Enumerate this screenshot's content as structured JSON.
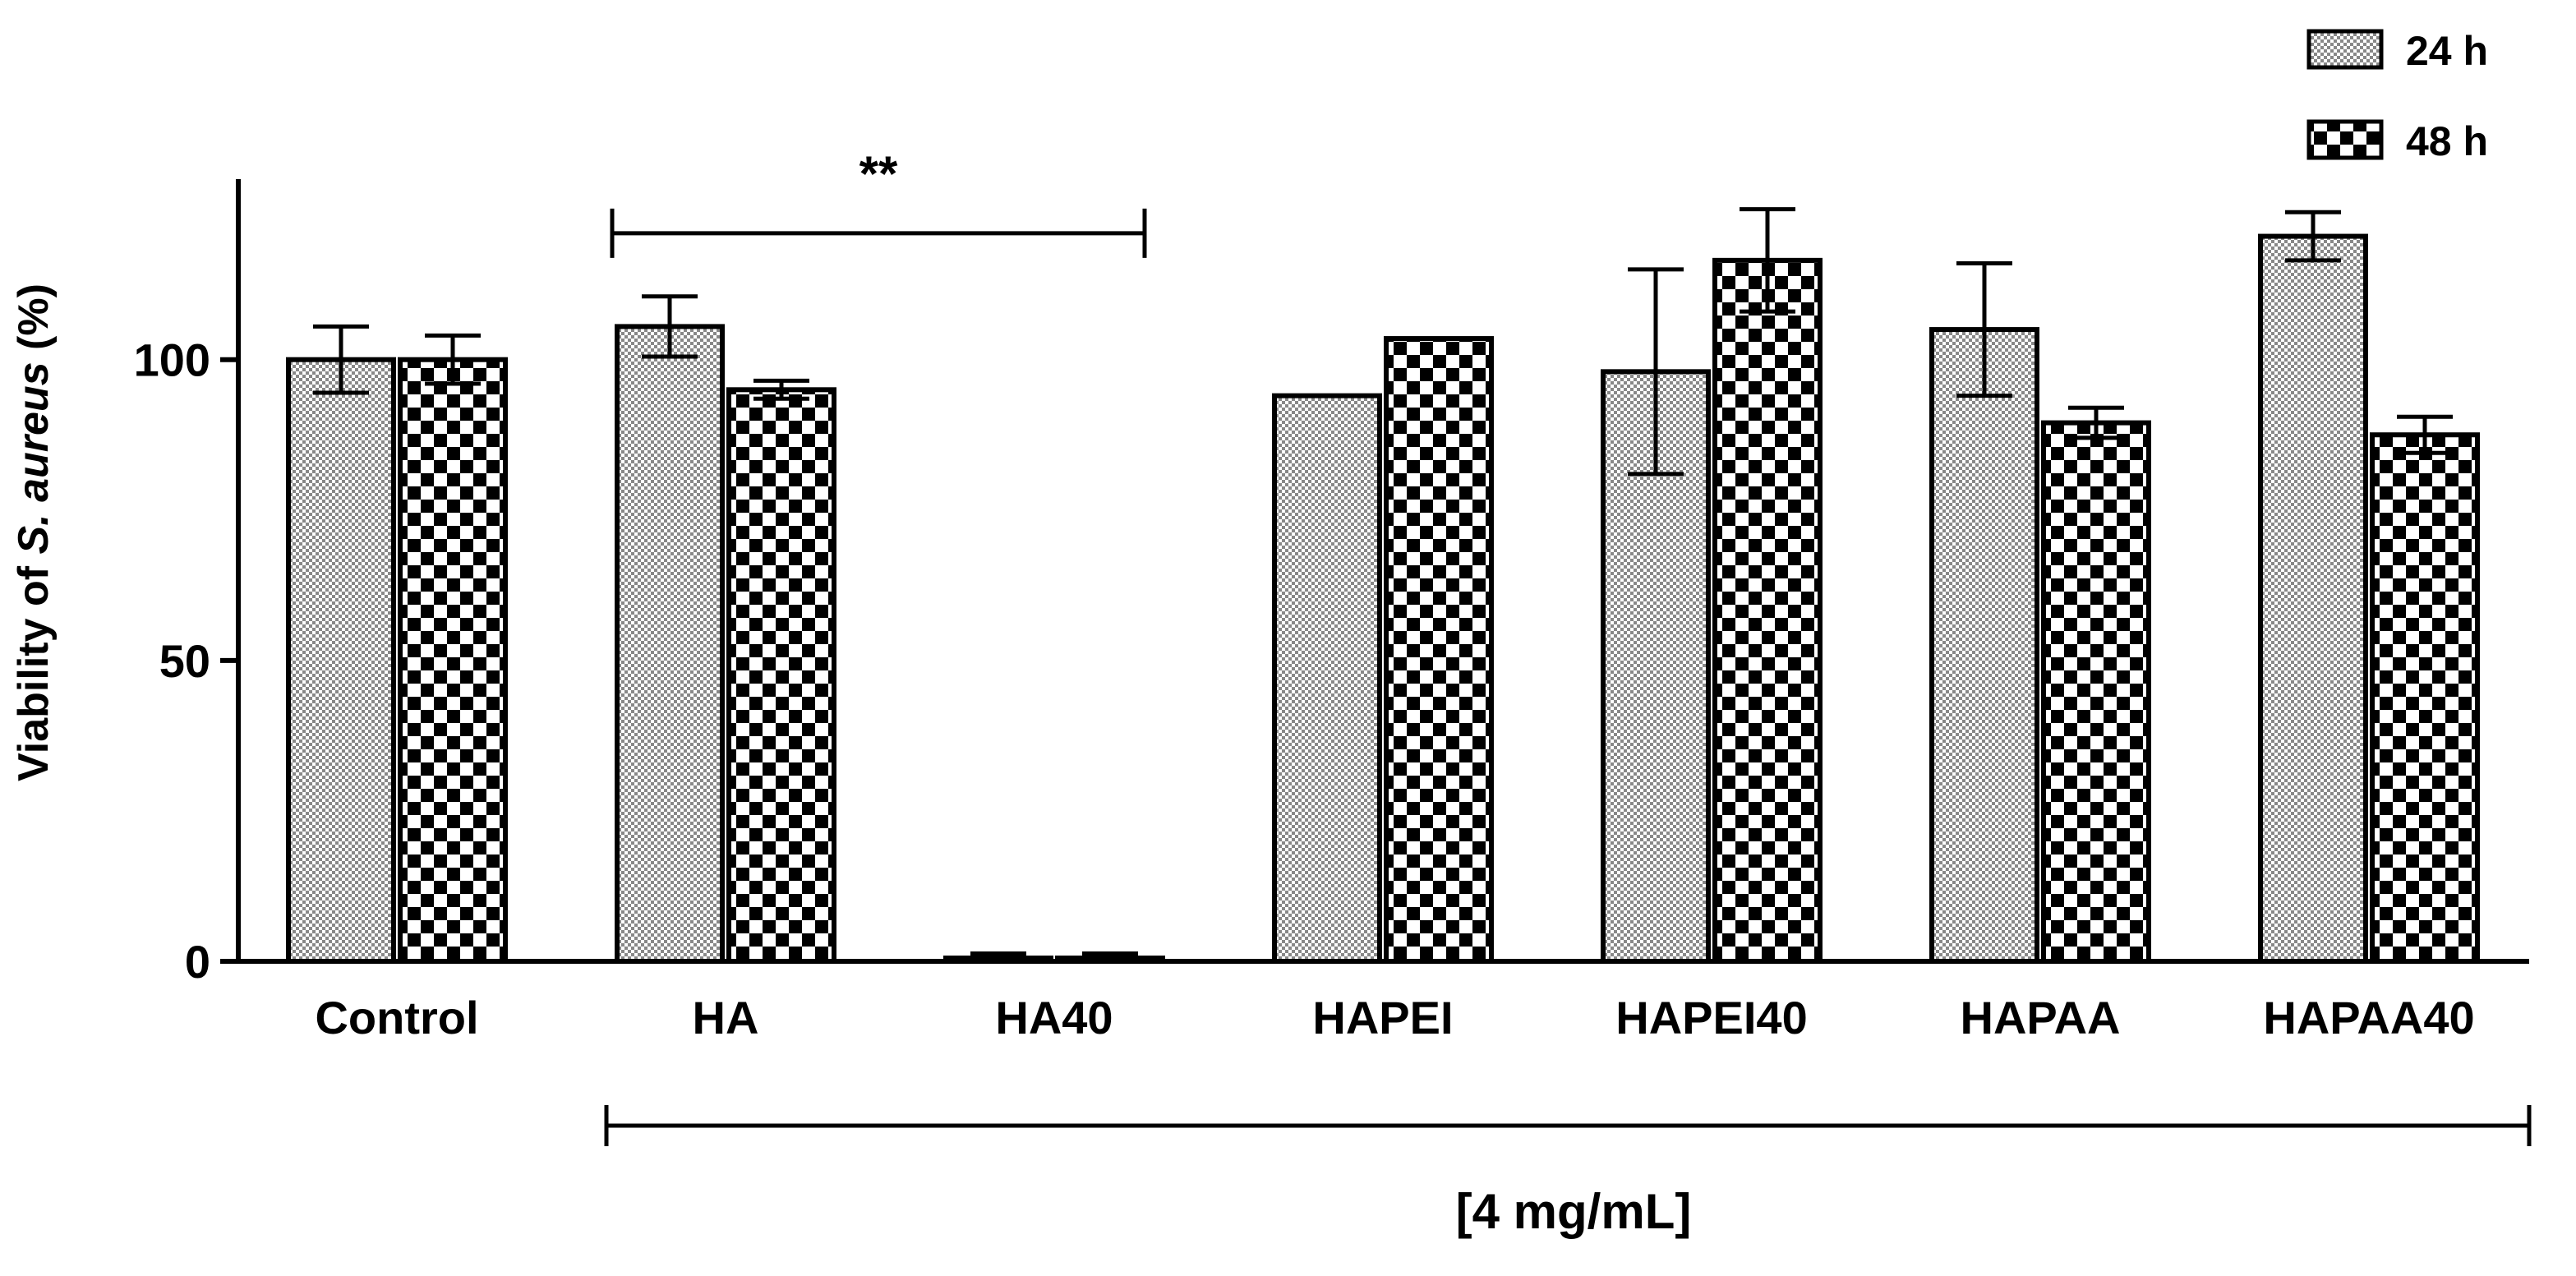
{
  "chart_data": {
    "type": "bar",
    "ylabel_pre": "Viability of ",
    "ylabel_italic": "S. aureus",
    "ylabel_post": " (%)",
    "ylim": [
      0,
      130
    ],
    "yticks": [
      0,
      50,
      100
    ],
    "categories": [
      "Control",
      "HA",
      "HA40",
      "HAPEI",
      "HAPEI40",
      "HAPAA",
      "HAPAA40"
    ],
    "series": [
      {
        "name": "24 h",
        "values": [
          100,
          105.5,
          0.5,
          94,
          98,
          105,
          120.5
        ],
        "errors": [
          5.5,
          5,
          0.8,
          0,
          17,
          11,
          4
        ]
      },
      {
        "name": "48 h",
        "values": [
          100,
          95,
          0.5,
          103.5,
          116.5,
          89.5,
          87.5
        ],
        "errors": [
          4,
          1.5,
          0.8,
          0,
          8.5,
          2.5,
          3
        ]
      }
    ],
    "colors": {
      "bar_fill_24": "#888888",
      "bar_fill_48": "#000000",
      "bar_bg": "#ffffff",
      "stroke": "#000000"
    },
    "legend": {
      "placement": "top-right"
    },
    "grid": false,
    "annotations": {
      "significance": {
        "label": "**",
        "from": "HA",
        "to": "HA40",
        "level": 121
      },
      "group_bracket": {
        "label": "[4 mg/mL]",
        "from": "HA",
        "to": "HAPAA40"
      }
    }
  }
}
